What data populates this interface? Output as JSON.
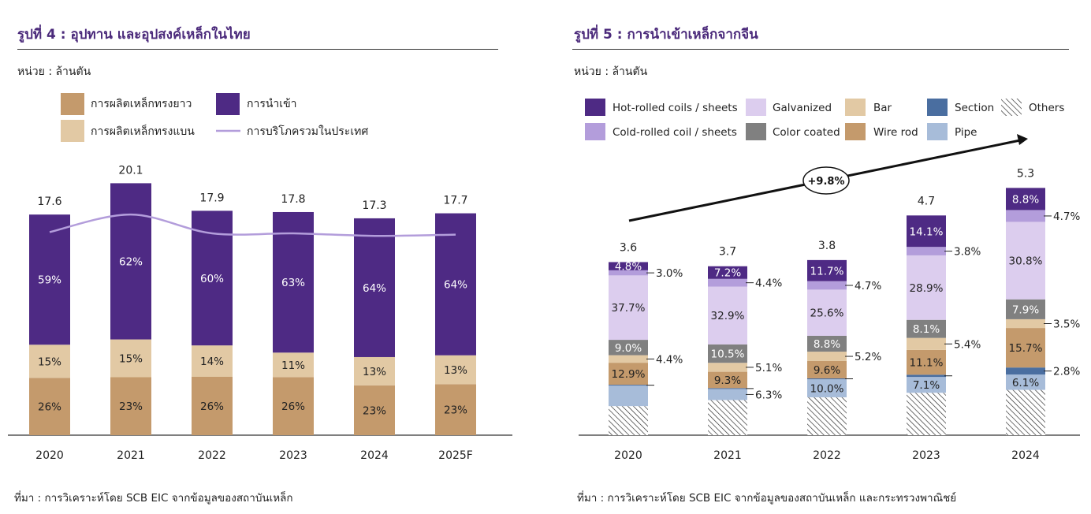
{
  "colors": {
    "title": "#4b2a7b",
    "long_steel": "#c49a6c",
    "flat_steel": "#e2c9a4",
    "imports": "#4e2a84",
    "consumption_line": "#b39ddb",
    "hot_rolled": "#4e2a84",
    "cold_rolled": "#b39ddb",
    "galvanized": "#dccdee",
    "color_coated": "#808080",
    "bar": "#e2c9a4",
    "wire_rod": "#c49a6c",
    "section": "#4a6ea0",
    "pipe": "#a7bcd9",
    "others": "hatched"
  },
  "left": {
    "title": "รูปที่ 4 : อุปทาน และอุปสงค์เหล็กในไทย",
    "unit": "หน่วย : ล้านตัน",
    "source": "ที่มา : การวิเคราะห์โดย SCB EIC จากข้อมูลของสถาบันเหล็ก"
  },
  "right": {
    "title": "รูปที่ 5 : การนำเข้าเหล็กจากจีน",
    "unit": "หน่วย : ล้านตัน",
    "source": "ที่มา : การวิเคราะห์โดย SCB EIC จากข้อมูลของสถาบันเหล็ก และกระทรวงพาณิชย์"
  },
  "chart_data": [
    {
      "type": "bar",
      "stacked": true,
      "categories": [
        "2020",
        "2021",
        "2022",
        "2023",
        "2024",
        "2025F"
      ],
      "totals": [
        17.6,
        20.1,
        17.9,
        17.8,
        17.3,
        17.7
      ],
      "series": [
        {
          "name": "การผลิตเหล็กทรงยาว",
          "key": "long_steel",
          "shares": [
            26,
            23,
            26,
            26,
            23,
            23
          ],
          "labels": [
            "26%",
            "23%",
            "26%",
            "26%",
            "23%",
            "23%"
          ]
        },
        {
          "name": "การผลิตเหล็กทรงแบน",
          "key": "flat_steel",
          "shares": [
            15,
            15,
            14,
            11,
            13,
            13
          ],
          "labels": [
            "15%",
            "15%",
            "14%",
            "11%",
            "13%",
            "13%"
          ]
        },
        {
          "name": "การนำเข้า",
          "key": "imports",
          "shares": [
            59,
            62,
            60,
            63,
            64,
            64
          ],
          "labels": [
            "59%",
            "62%",
            "60%",
            "63%",
            "64%",
            "64%"
          ]
        }
      ],
      "line": {
        "name": "การบริโภครวมในประเทศ",
        "values": [
          16.2,
          17.6,
          16.1,
          16.1,
          15.9,
          16.0
        ]
      },
      "legend_order": [
        "long_steel",
        "imports",
        "flat_steel",
        "line"
      ],
      "ylim": [
        0,
        22
      ]
    },
    {
      "type": "bar",
      "stacked": true,
      "categories": [
        "2020",
        "2021",
        "2022",
        "2023",
        "2024"
      ],
      "totals": [
        3.6,
        3.7,
        3.8,
        4.7,
        5.3
      ],
      "total_labels": [
        "3.6",
        "3.7",
        "3.8",
        "4.7",
        "5.3"
      ],
      "growth_label": "+9.8%",
      "series": [
        {
          "name": "Others",
          "key": "others",
          "shares": [
            17.0,
            20.0,
            21.0,
            19.0,
            18.0
          ],
          "labels": [
            "",
            "",
            "",
            "",
            ""
          ]
        },
        {
          "name": "Pipe",
          "key": "pipe",
          "shares": [
            12.0,
            6.3,
            10.0,
            7.1,
            6.1
          ],
          "labels": [
            "",
            "6.3%",
            "10.0%",
            "7.1%",
            "6.1%"
          ]
        },
        {
          "name": "Section",
          "key": "section",
          "shares": [
            0.5,
            0.5,
            0.5,
            1.0,
            2.8
          ],
          "labels": [
            "",
            "",
            "",
            "",
            "2.8%"
          ]
        },
        {
          "name": "Wire rod",
          "key": "wire_rod",
          "shares": [
            12.9,
            9.3,
            9.6,
            11.1,
            15.7
          ],
          "labels": [
            "12.9%",
            "9.3%",
            "9.6%",
            "11.1%",
            "15.7%"
          ]
        },
        {
          "name": "Bar",
          "key": "bar",
          "shares": [
            4.4,
            5.1,
            5.2,
            5.4,
            3.5
          ],
          "labels": [
            "4.4%",
            "5.1%",
            "5.2%",
            "5.4%",
            "3.5%"
          ]
        },
        {
          "name": "Color coated",
          "key": "color_coated",
          "shares": [
            9.0,
            10.5,
            8.8,
            8.1,
            7.9
          ],
          "labels": [
            "9.0%",
            "10.5%",
            "8.8%",
            "8.1%",
            "7.9%"
          ]
        },
        {
          "name": "Galvanized",
          "key": "galvanized",
          "shares": [
            37.7,
            32.9,
            25.6,
            28.9,
            30.8
          ],
          "labels": [
            "37.7%",
            "32.9%",
            "25.6%",
            "28.9%",
            "30.8%"
          ]
        },
        {
          "name": "Cold-rolled coil / sheets",
          "key": "cold_rolled",
          "shares": [
            3.0,
            4.4,
            4.7,
            3.8,
            4.7
          ],
          "labels": [
            "3.0%",
            "4.4%",
            "4.7%",
            "3.8%",
            "4.7%"
          ]
        },
        {
          "name": "Hot-rolled  coils / sheets",
          "key": "hot_rolled",
          "shares": [
            4.8,
            7.2,
            11.7,
            14.1,
            8.8
          ],
          "labels": [
            "4.8%",
            "7.2%",
            "11.7%",
            "14.1%",
            "8.8%"
          ]
        }
      ],
      "legend_order": [
        "hot_rolled",
        "galvanized",
        "bar",
        "section",
        "others",
        "cold_rolled",
        "color_coated",
        "wire_rod",
        "pipe"
      ],
      "ylim": [
        0,
        6
      ]
    }
  ]
}
